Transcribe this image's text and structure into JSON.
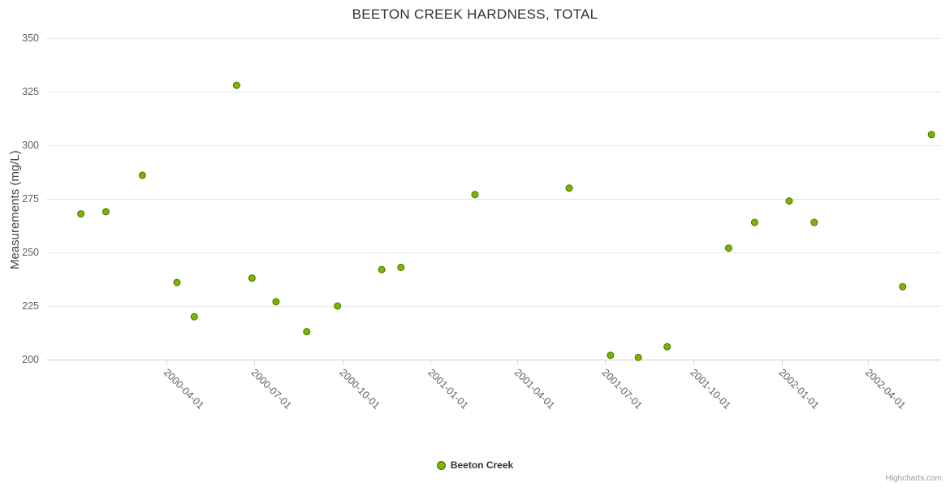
{
  "credits": "Highcharts.com",
  "colors": {
    "title_text": "#333333",
    "axis_text": "#606060",
    "gridline": "#e6e6e6",
    "axis_line": "#d0d0d0",
    "tick_mark": "#ccd6eb",
    "marker_fill": "#7cb400",
    "marker_stroke": "#4d7100"
  },
  "chart_data": {
    "type": "scatter",
    "title": "BEETON CREEK HARDNESS, TOTAL",
    "xlabel": "",
    "ylabel": "Measurements (mg/L)",
    "ylim": [
      200,
      350
    ],
    "y_ticks": [
      200,
      225,
      250,
      275,
      300,
      325,
      350
    ],
    "x_ticks": [
      "2000-04-01",
      "2000-07-01",
      "2000-10-01",
      "2001-01-01",
      "2001-04-01",
      "2001-07-01",
      "2001-10-01",
      "2002-01-01",
      "2002-04-01"
    ],
    "x_range": [
      "1999-11-28",
      "2002-06-16"
    ],
    "grid": true,
    "legend_position": "bottom",
    "series": [
      {
        "name": "Beeton Creek",
        "color": "#7cb400",
        "marker_stroke": "#4d7100",
        "points": [
          {
            "date": "2000-01-03",
            "value": 268
          },
          {
            "date": "2000-01-29",
            "value": 269
          },
          {
            "date": "2000-03-07",
            "value": 286
          },
          {
            "date": "2000-04-12",
            "value": 236
          },
          {
            "date": "2000-04-30",
            "value": 220
          },
          {
            "date": "2000-06-13",
            "value": 328
          },
          {
            "date": "2000-06-29",
            "value": 238
          },
          {
            "date": "2000-07-24",
            "value": 227
          },
          {
            "date": "2000-08-25",
            "value": 213
          },
          {
            "date": "2000-09-26",
            "value": 225
          },
          {
            "date": "2000-11-11",
            "value": 242
          },
          {
            "date": "2000-12-01",
            "value": 243
          },
          {
            "date": "2001-02-16",
            "value": 277
          },
          {
            "date": "2001-05-25",
            "value": 280
          },
          {
            "date": "2001-07-07",
            "value": 202
          },
          {
            "date": "2001-08-05",
            "value": 201
          },
          {
            "date": "2001-09-04",
            "value": 206
          },
          {
            "date": "2001-11-07",
            "value": 252
          },
          {
            "date": "2001-12-04",
            "value": 264
          },
          {
            "date": "2002-01-09",
            "value": 274
          },
          {
            "date": "2002-02-04",
            "value": 264
          },
          {
            "date": "2002-05-07",
            "value": 234
          },
          {
            "date": "2002-06-06",
            "value": 305
          }
        ]
      }
    ]
  }
}
